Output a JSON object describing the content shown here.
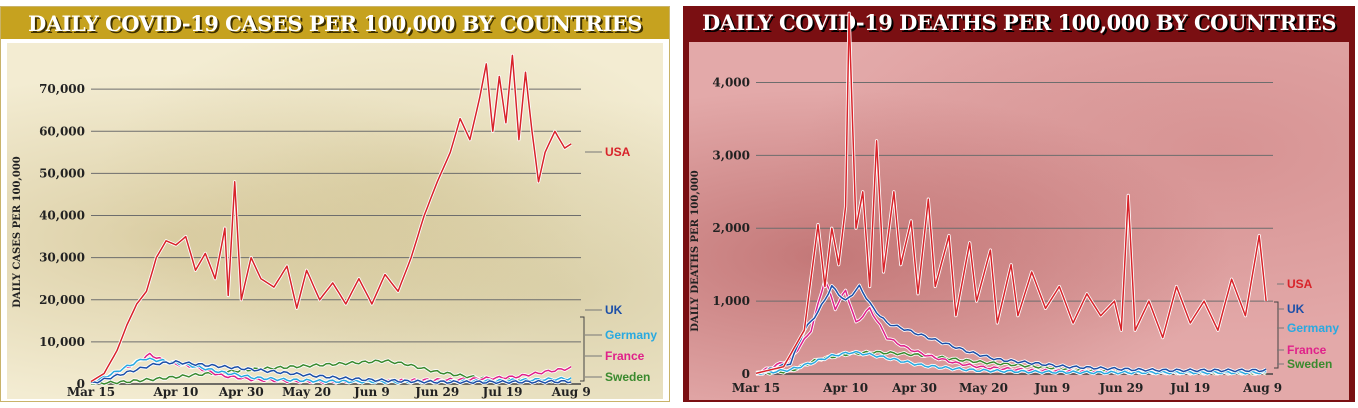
{
  "chart_data": [
    {
      "id": "cases",
      "type": "line",
      "title": "DAILY COVID-19 CASES PER 100,000 BY COUNTRIES",
      "ylabel": "DAILY CASES PER 100,000",
      "xlabel": "",
      "x_tick_labels": [
        "Mar 15",
        "Apr 10",
        "Apr 30",
        "May 20",
        "Jun 9",
        "Jun 29",
        "Jul 19",
        "Aug 9"
      ],
      "x_tick_days": [
        0,
        26,
        46,
        66,
        86,
        106,
        126,
        147
      ],
      "x_range": [
        0,
        150
      ],
      "ylim": [
        0,
        80000
      ],
      "y_ticks": [
        0,
        10000,
        20000,
        30000,
        40000,
        50000,
        60000,
        70000
      ],
      "y_tick_labels": [
        "0",
        "10,000",
        "20,000",
        "30,000",
        "40,000",
        "50,000",
        "60,000",
        "70,000"
      ],
      "grid": true,
      "legend_position": "right",
      "series": [
        {
          "name": "USA",
          "color": "#d8232a",
          "keyframes": [
            [
              0,
              600
            ],
            [
              4,
              2500
            ],
            [
              8,
              8000
            ],
            [
              11,
              14000
            ],
            [
              14,
              19000
            ],
            [
              17,
              22000
            ],
            [
              20,
              30000
            ],
            [
              23,
              34000
            ],
            [
              26,
              33000
            ],
            [
              29,
              35000
            ],
            [
              32,
              27000
            ],
            [
              35,
              31000
            ],
            [
              38,
              25000
            ],
            [
              41,
              37000
            ],
            [
              42,
              21000
            ],
            [
              44,
              48000
            ],
            [
              46,
              20000
            ],
            [
              49,
              30000
            ],
            [
              52,
              25000
            ],
            [
              56,
              23000
            ],
            [
              60,
              28000
            ],
            [
              63,
              18000
            ],
            [
              66,
              27000
            ],
            [
              70,
              20000
            ],
            [
              74,
              24000
            ],
            [
              78,
              19000
            ],
            [
              82,
              25000
            ],
            [
              86,
              19000
            ],
            [
              90,
              26000
            ],
            [
              94,
              22000
            ],
            [
              98,
              30000
            ],
            [
              102,
              40000
            ],
            [
              106,
              48000
            ],
            [
              110,
              55000
            ],
            [
              113,
              63000
            ],
            [
              116,
              58000
            ],
            [
              119,
              68000
            ],
            [
              121,
              76000
            ],
            [
              123,
              60000
            ],
            [
              125,
              73000
            ],
            [
              127,
              62000
            ],
            [
              129,
              78000
            ],
            [
              131,
              58000
            ],
            [
              133,
              74000
            ],
            [
              135,
              60000
            ],
            [
              137,
              48000
            ],
            [
              139,
              55000
            ],
            [
              142,
              60000
            ],
            [
              145,
              56000
            ],
            [
              147,
              57000
            ]
          ]
        },
        {
          "name": "UK",
          "color": "#1c4fa8",
          "keyframes": [
            [
              0,
              100
            ],
            [
              10,
              2500
            ],
            [
              20,
              4800
            ],
            [
              26,
              5200
            ],
            [
              35,
              4500
            ],
            [
              45,
              3800
            ],
            [
              55,
              3000
            ],
            [
              65,
              2200
            ],
            [
              75,
              1500
            ],
            [
              85,
              1000
            ],
            [
              95,
              700
            ],
            [
              105,
              500
            ],
            [
              115,
              450
            ],
            [
              125,
              450
            ],
            [
              135,
              500
            ],
            [
              147,
              600
            ]
          ]
        },
        {
          "name": "Germany",
          "color": "#29a9e0",
          "keyframes": [
            [
              0,
              200
            ],
            [
              8,
              3000
            ],
            [
              16,
              6000
            ],
            [
              22,
              5500
            ],
            [
              30,
              4500
            ],
            [
              40,
              2800
            ],
            [
              50,
              1500
            ],
            [
              60,
              1000
            ],
            [
              70,
              700
            ],
            [
              80,
              600
            ],
            [
              95,
              450
            ],
            [
              110,
              600
            ],
            [
              125,
              800
            ],
            [
              135,
              1000
            ],
            [
              147,
              1300
            ]
          ]
        },
        {
          "name": "France",
          "color": "#e0218a",
          "keyframes": [
            [
              0,
              300
            ],
            [
              10,
              3500
            ],
            [
              18,
              7000
            ],
            [
              24,
              5000
            ],
            [
              32,
              4000
            ],
            [
              40,
              2000
            ],
            [
              50,
              1000
            ],
            [
              60,
              700
            ],
            [
              70,
              500
            ],
            [
              85,
              600
            ],
            [
              100,
              900
            ],
            [
              115,
              1100
            ],
            [
              130,
              1700
            ],
            [
              140,
              3000
            ],
            [
              147,
              3800
            ]
          ]
        },
        {
          "name": "Sweden",
          "color": "#3a8a2e",
          "keyframes": [
            [
              0,
              50
            ],
            [
              10,
              500
            ],
            [
              20,
              1200
            ],
            [
              30,
              2000
            ],
            [
              40,
              2800
            ],
            [
              50,
              3500
            ],
            [
              60,
              4000
            ],
            [
              70,
              4500
            ],
            [
              80,
              5000
            ],
            [
              90,
              5500
            ],
            [
              96,
              4800
            ],
            [
              105,
              3000
            ],
            [
              115,
              1800
            ],
            [
              125,
              1000
            ],
            [
              135,
              800
            ],
            [
              147,
              800
            ]
          ]
        }
      ]
    },
    {
      "id": "deaths",
      "type": "line",
      "title": "DAILY COVID-19 DEATHS PER 100,000 BY COUNTRIES",
      "ylabel": "DAILY DEATHS PER 100,000",
      "xlabel": "",
      "x_tick_labels": [
        "Mar 15",
        "Apr 10",
        "Apr 30",
        "May 20",
        "Jun 9",
        "Jun 29",
        "Jul 19",
        "Aug 9"
      ],
      "x_tick_days": [
        0,
        26,
        46,
        66,
        86,
        106,
        126,
        147
      ],
      "x_range": [
        0,
        150
      ],
      "ylim": [
        0,
        4500
      ],
      "y_ticks": [
        0,
        1000,
        2000,
        3000,
        4000
      ],
      "y_tick_labels": [
        "0",
        "1,000",
        "2,000",
        "3,000",
        "4,000"
      ],
      "grid": true,
      "legend_position": "right",
      "series": [
        {
          "name": "USA",
          "color": "#d8232a",
          "keyframes": [
            [
              0,
              10
            ],
            [
              8,
              100
            ],
            [
              14,
              600
            ],
            [
              18,
              2050
            ],
            [
              20,
              1200
            ],
            [
              22,
              2000
            ],
            [
              24,
              1500
            ],
            [
              26,
              2300
            ],
            [
              27,
              4950
            ],
            [
              29,
              2000
            ],
            [
              31,
              2500
            ],
            [
              33,
              1200
            ],
            [
              35,
              3200
            ],
            [
              37,
              1400
            ],
            [
              40,
              2500
            ],
            [
              42,
              1500
            ],
            [
              45,
              2100
            ],
            [
              47,
              1100
            ],
            [
              50,
              2400
            ],
            [
              52,
              1200
            ],
            [
              56,
              1900
            ],
            [
              58,
              800
            ],
            [
              62,
              1800
            ],
            [
              64,
              1000
            ],
            [
              68,
              1700
            ],
            [
              70,
              700
            ],
            [
              74,
              1500
            ],
            [
              76,
              800
            ],
            [
              80,
              1400
            ],
            [
              84,
              900
            ],
            [
              88,
              1200
            ],
            [
              92,
              700
            ],
            [
              96,
              1100
            ],
            [
              100,
              800
            ],
            [
              104,
              1000
            ],
            [
              106,
              600
            ],
            [
              108,
              2450
            ],
            [
              110,
              600
            ],
            [
              114,
              1000
            ],
            [
              118,
              500
            ],
            [
              122,
              1200
            ],
            [
              126,
              700
            ],
            [
              130,
              1000
            ],
            [
              134,
              600
            ],
            [
              138,
              1300
            ],
            [
              142,
              800
            ],
            [
              146,
              1900
            ],
            [
              148,
              1000
            ]
          ]
        },
        {
          "name": "UK",
          "color": "#1c4fa8",
          "keyframes": [
            [
              0,
              5
            ],
            [
              10,
              150
            ],
            [
              14,
              600
            ],
            [
              18,
              850
            ],
            [
              22,
              1200
            ],
            [
              26,
              1000
            ],
            [
              30,
              1200
            ],
            [
              34,
              900
            ],
            [
              38,
              700
            ],
            [
              44,
              600
            ],
            [
              50,
              500
            ],
            [
              56,
              400
            ],
            [
              62,
              300
            ],
            [
              70,
              200
            ],
            [
              80,
              150
            ],
            [
              90,
              100
            ],
            [
              100,
              80
            ],
            [
              110,
              60
            ],
            [
              120,
              50
            ],
            [
              130,
              50
            ],
            [
              148,
              50
            ]
          ]
        },
        {
          "name": "Germany",
          "color": "#29a9e0",
          "keyframes": [
            [
              0,
              2
            ],
            [
              10,
              60
            ],
            [
              16,
              150
            ],
            [
              22,
              250
            ],
            [
              28,
              300
            ],
            [
              34,
              260
            ],
            [
              40,
              200
            ],
            [
              48,
              120
            ],
            [
              56,
              80
            ],
            [
              64,
              50
            ],
            [
              80,
              30
            ],
            [
              100,
              20
            ],
            [
              120,
              20
            ],
            [
              148,
              20
            ]
          ]
        },
        {
          "name": "France",
          "color": "#e0218a",
          "keyframes": [
            [
              0,
              5
            ],
            [
              10,
              200
            ],
            [
              16,
              600
            ],
            [
              20,
              1300
            ],
            [
              23,
              900
            ],
            [
              26,
              1150
            ],
            [
              29,
              700
            ],
            [
              33,
              900
            ],
            [
              38,
              500
            ],
            [
              44,
              350
            ],
            [
              50,
              250
            ],
            [
              58,
              150
            ],
            [
              66,
              90
            ],
            [
              80,
              50
            ],
            [
              100,
              30
            ],
            [
              120,
              20
            ],
            [
              148,
              20
            ]
          ]
        },
        {
          "name": "Sweden",
          "color": "#3a8a2e",
          "keyframes": [
            [
              0,
              2
            ],
            [
              10,
              40
            ],
            [
              18,
              200
            ],
            [
              26,
              270
            ],
            [
              34,
              300
            ],
            [
              42,
              280
            ],
            [
              50,
              250
            ],
            [
              58,
              200
            ],
            [
              66,
              160
            ],
            [
              74,
              130
            ],
            [
              84,
              90
            ],
            [
              94,
              60
            ],
            [
              104,
              40
            ],
            [
              120,
              20
            ],
            [
              148,
              10
            ]
          ]
        }
      ]
    }
  ]
}
